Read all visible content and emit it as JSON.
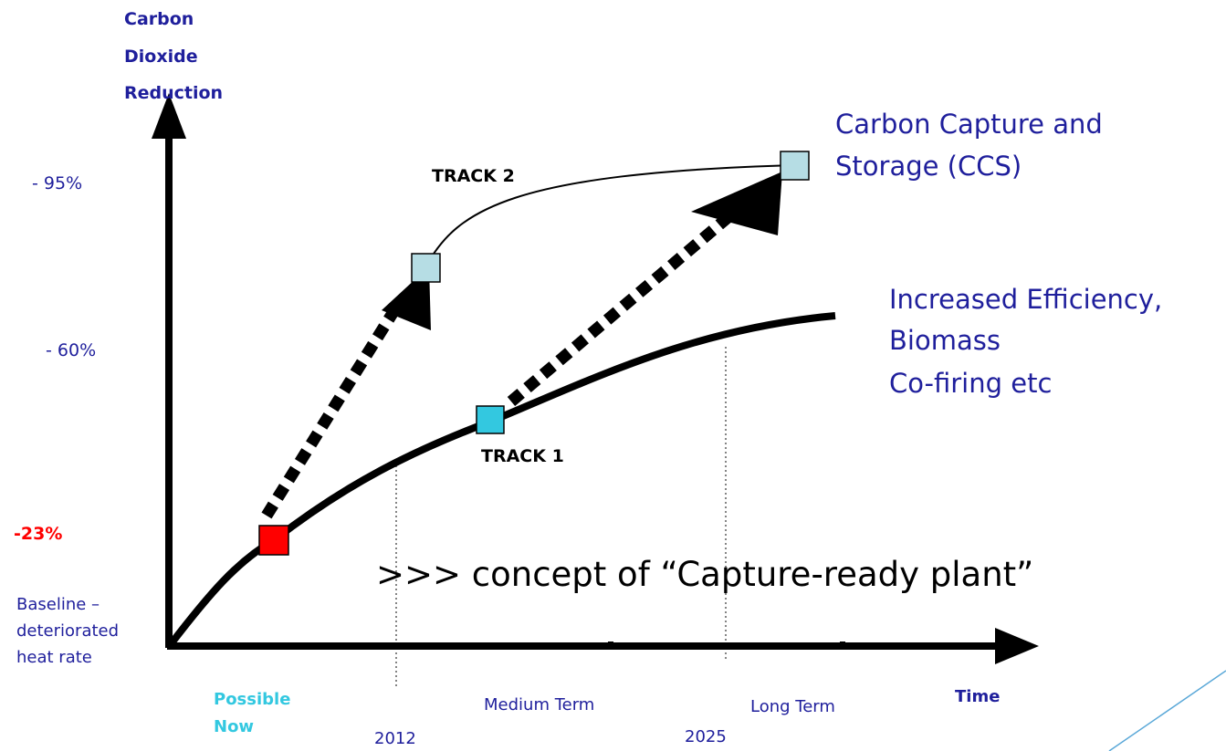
{
  "y_axis": {
    "label": [
      "Carbon",
      "Dioxide",
      "Reduction"
    ],
    "levels": [
      "- 95%",
      "- 60%",
      "-23%"
    ],
    "baseline": [
      "Baseline –",
      "deteriorated",
      "heat rate"
    ]
  },
  "tracks": {
    "track2": "TRACK 2",
    "track1": "TRACK 1"
  },
  "ccs": [
    "Carbon Capture and",
    "Storage (CCS)"
  ],
  "efficiency": [
    "Increased Efficiency,",
    "Biomass",
    "Co-firing etc"
  ],
  "concept": ">>> concept of “Capture-ready plant”",
  "x_axis": {
    "label": "Time",
    "possible_now": [
      "Possible",
      "Now"
    ],
    "medium_term": "Medium Term",
    "long_term": "Long Term",
    "years": [
      "2012",
      "2025"
    ]
  }
}
